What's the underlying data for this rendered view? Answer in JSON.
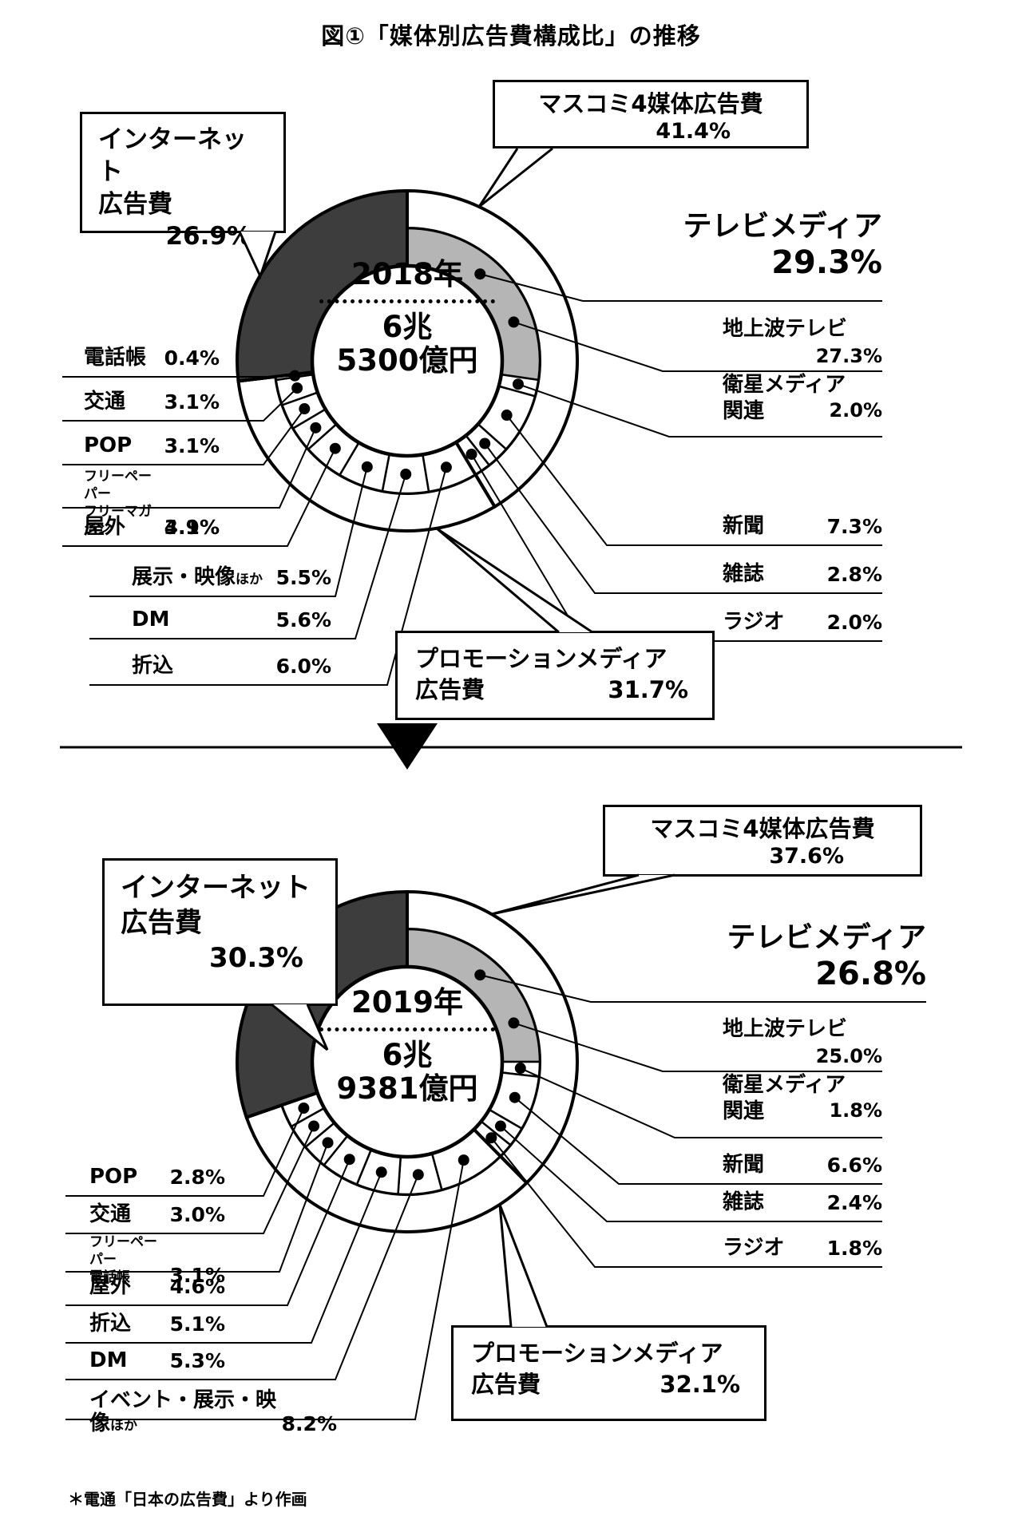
{
  "title": "図①「媒体別広告費構成比」の推移",
  "footer": "＊電通「日本の広告費」より作画",
  "colors": {
    "internet_fill": "#3d3d3d",
    "tv_fill": "#b5b5b5",
    "stroke": "#000000",
    "background": "#ffffff"
  },
  "chart_data": [
    {
      "type": "pie",
      "variant": "donut",
      "year": "2018年",
      "total_line1": "6兆",
      "total_line2": "5300億円",
      "groups": {
        "mass4": {
          "label": "マスコミ4媒体広告費",
          "value": "41.4%",
          "pct": 41.4
        },
        "promo": {
          "line1": "プロモーションメディア",
          "line2": "広告費",
          "value": "31.7%",
          "pct": 31.7
        },
        "internet": {
          "line1": "インターネット",
          "line2": "広告費",
          "value": "26.9%",
          "pct": 26.9
        }
      },
      "tv": {
        "label": "テレビメディア",
        "value": "29.3%",
        "pct": 29.3
      },
      "segments": [
        {
          "id": "chijoha",
          "label": "地上波テレビ",
          "value": "27.3%",
          "pct": 27.3
        },
        {
          "id": "eisei",
          "label": "衛星メディア",
          "label2": "関連",
          "value": "2.0%",
          "pct": 2.0
        },
        {
          "id": "shimbun",
          "label": "新聞",
          "value": "7.3%",
          "pct": 7.3
        },
        {
          "id": "zasshi",
          "label": "雑誌",
          "value": "2.8%",
          "pct": 2.8
        },
        {
          "id": "radio",
          "label": "ラジオ",
          "value": "2.0%",
          "pct": 2.0
        },
        {
          "id": "orikomi",
          "label": "折込",
          "value": "6.0%",
          "pct": 6.0
        },
        {
          "id": "dm",
          "label": "DM",
          "value": "5.6%",
          "pct": 5.6
        },
        {
          "id": "tenji",
          "label": "展示・映像",
          "suffix": "ほか",
          "value": "5.5%",
          "pct": 5.5
        },
        {
          "id": "okugai",
          "label": "屋外",
          "value": "4.9%",
          "pct": 4.9
        },
        {
          "id": "freepaper",
          "label": "フリーペーパー",
          "label2": "フリーマガジン",
          "value": "3.1%",
          "pct": 3.1
        },
        {
          "id": "pop",
          "label": "POP",
          "value": "3.1%",
          "pct": 3.1
        },
        {
          "id": "kotsu",
          "label": "交通",
          "value": "3.1%",
          "pct": 3.1
        },
        {
          "id": "denwacho",
          "label": "電話帳",
          "value": "0.4%",
          "pct": 0.4
        },
        {
          "id": "internet",
          "pct": 26.9
        }
      ]
    },
    {
      "type": "pie",
      "variant": "donut",
      "year": "2019年",
      "total_line1": "6兆",
      "total_line2": "9381億円",
      "groups": {
        "mass4": {
          "label": "マスコミ4媒体広告費",
          "value": "37.6%",
          "pct": 37.6
        },
        "promo": {
          "line1": "プロモーションメディア",
          "line2": "広告費",
          "value": "32.1%",
          "pct": 32.1
        },
        "internet": {
          "line1": "インターネット",
          "line2": "広告費",
          "value": "30.3%",
          "pct": 30.3
        }
      },
      "tv": {
        "label": "テレビメディア",
        "value": "26.8%",
        "pct": 26.8
      },
      "segments": [
        {
          "id": "chijoha",
          "label": "地上波テレビ",
          "value": "25.0%",
          "pct": 25.0
        },
        {
          "id": "eisei",
          "label": "衛星メディア",
          "label2": "関連",
          "value": "1.8%",
          "pct": 1.8
        },
        {
          "id": "shimbun",
          "label": "新聞",
          "value": "6.6%",
          "pct": 6.6
        },
        {
          "id": "zasshi",
          "label": "雑誌",
          "value": "2.4%",
          "pct": 2.4
        },
        {
          "id": "radio",
          "label": "ラジオ",
          "value": "1.8%",
          "pct": 1.8
        },
        {
          "id": "event",
          "label": "イベント・展示・映像",
          "suffix": "ほか",
          "value": "8.2%",
          "pct": 8.2
        },
        {
          "id": "dm",
          "label": "DM",
          "value": "5.3%",
          "pct": 5.3
        },
        {
          "id": "orikomi",
          "label": "折込",
          "value": "5.1%",
          "pct": 5.1
        },
        {
          "id": "okugai",
          "label": "屋外",
          "value": "4.6%",
          "pct": 4.6
        },
        {
          "id": "fp_denwacho",
          "label": "フリーペーパー",
          "label2": "電話帳",
          "value": "3.1%",
          "pct": 3.1
        },
        {
          "id": "kotsu",
          "label": "交通",
          "value": "3.0%",
          "pct": 3.0
        },
        {
          "id": "pop",
          "label": "POP",
          "value": "2.8%",
          "pct": 2.8
        },
        {
          "id": "internet",
          "pct": 30.3
        }
      ]
    }
  ]
}
